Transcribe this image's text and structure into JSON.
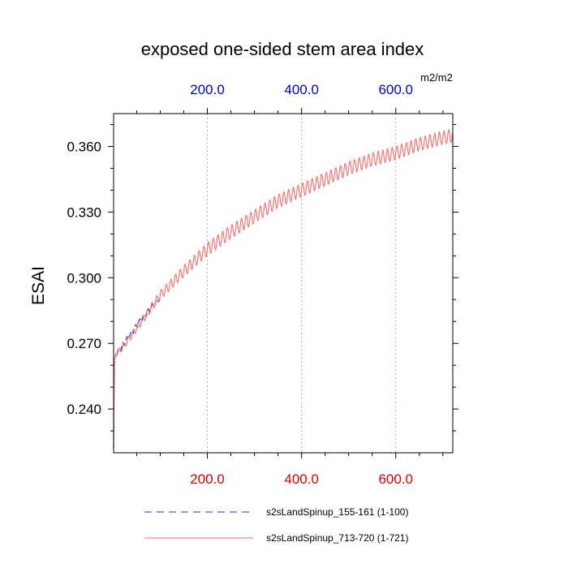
{
  "chart_data": {
    "type": "line",
    "title": "exposed one-sided stem area index",
    "ylabel": "ESAI",
    "units": "m2/m2",
    "xlim": [
      1,
      721
    ],
    "ylim": [
      0.22,
      0.375
    ],
    "grid": "vertical dotted lines at top-axis ticks",
    "legend": "bottom",
    "yticks": [
      0.24,
      0.27,
      0.3,
      0.33,
      0.36
    ],
    "ytick_labels": [
      "0.240",
      "0.270",
      "0.300",
      "0.330",
      "0.360"
    ],
    "xticks_bottom": [
      200,
      400,
      600
    ],
    "xtick_labels_bottom": [
      "200.0",
      "400.0",
      "600.0"
    ],
    "xticks_top": [
      200,
      400,
      600
    ],
    "xtick_labels_top": [
      "200.0",
      "400.0",
      "600.0"
    ],
    "colors": {
      "bottom_tick_labels": "#e00000",
      "top_tick_labels": "#0000d0",
      "series_1": "#3030d0",
      "series_2": "#ff6a6a"
    },
    "series": [
      {
        "name": "s2sLandSpinup_155-161 (1-100)",
        "style": "dashed",
        "x": [
          1,
          2,
          3,
          5,
          10,
          20,
          40,
          60,
          80,
          100
        ],
        "y": [
          0.222,
          0.255,
          0.263,
          0.265,
          0.266,
          0.269,
          0.275,
          0.281,
          0.286,
          0.291
        ]
      },
      {
        "name": "s2sLandSpinup_713-720 (1-721)",
        "style": "solid",
        "oscillation_amplitude": 0.003,
        "oscillation_period": 10,
        "x": [
          1,
          3,
          5,
          10,
          20,
          50,
          100,
          150,
          200,
          250,
          300,
          350,
          400,
          450,
          500,
          550,
          600,
          650,
          700,
          721
        ],
        "y": [
          0.222,
          0.263,
          0.265,
          0.266,
          0.268,
          0.277,
          0.292,
          0.303,
          0.313,
          0.321,
          0.328,
          0.335,
          0.34,
          0.345,
          0.35,
          0.354,
          0.357,
          0.361,
          0.364,
          0.365
        ]
      }
    ]
  }
}
